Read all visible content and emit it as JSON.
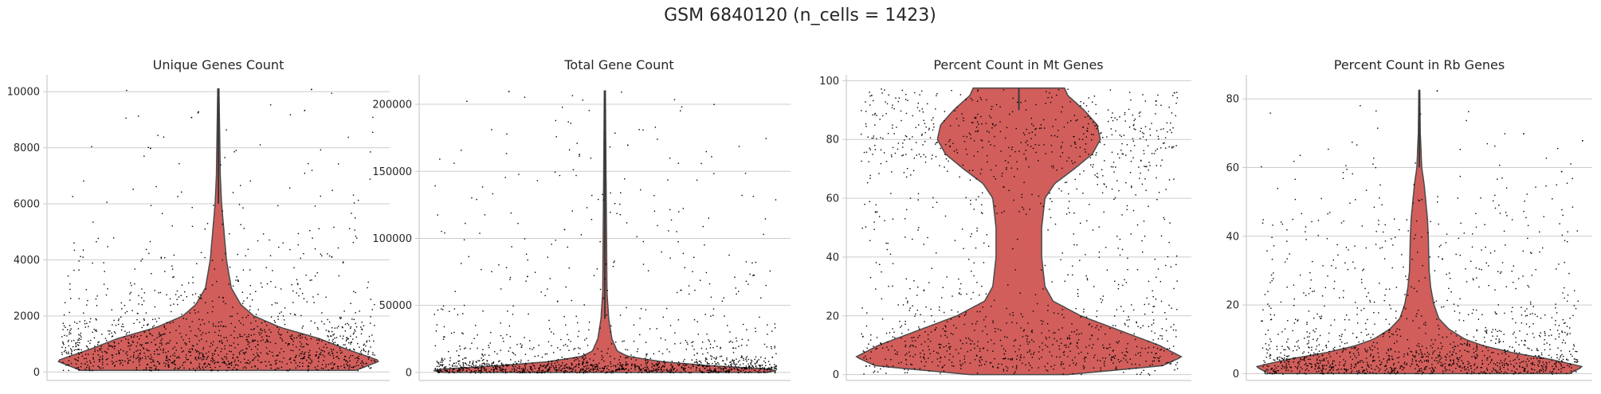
{
  "suptitle": "GSM 6840120 (n_cells = 1423)",
  "style": {
    "violin_fill": "#d15e5b",
    "violin_edge": "#4a4a4a",
    "point_color": "#000000",
    "grid_color": "#cccccc"
  },
  "chart_data": [
    {
      "type": "violin",
      "title": "Unique Genes Count",
      "ylim": [
        -300,
        10600
      ],
      "yticks": [
        0,
        2000,
        4000,
        6000,
        8000,
        10000
      ],
      "ytick_labels": [
        "0",
        "2000",
        "4000",
        "6000",
        "8000",
        "10000"
      ],
      "n_points": 1423,
      "max": 10100,
      "violin_profile": [
        [
          60,
          0.85
        ],
        [
          400,
          1.0
        ],
        [
          800,
          0.8
        ],
        [
          1200,
          0.62
        ],
        [
          1600,
          0.38
        ],
        [
          2000,
          0.22
        ],
        [
          2400,
          0.14
        ],
        [
          3000,
          0.08
        ],
        [
          4000,
          0.05
        ],
        [
          5000,
          0.035
        ],
        [
          6000,
          0.02
        ],
        [
          7000,
          0.012
        ],
        [
          10100,
          0.004
        ]
      ],
      "outliers": [
        [
          0.44,
          9300
        ],
        [
          0.42,
          9100
        ],
        [
          0.75,
          9350
        ],
        [
          0.77,
          10100
        ],
        [
          0.3,
          8000
        ]
      ]
    },
    {
      "type": "violin",
      "title": "Total Gene Count",
      "ylim": [
        -6000,
        222000
      ],
      "yticks": [
        0,
        50000,
        100000,
        150000,
        200000
      ],
      "ytick_labels": [
        "0",
        "50000",
        "100000",
        "150000",
        "200000"
      ],
      "n_points": 1423,
      "max": 210000,
      "violin_profile": [
        [
          0,
          0.92
        ],
        [
          2000,
          1.0
        ],
        [
          5000,
          0.6
        ],
        [
          8000,
          0.32
        ],
        [
          12000,
          0.13
        ],
        [
          16000,
          0.07
        ],
        [
          25000,
          0.04
        ],
        [
          40000,
          0.022
        ],
        [
          60000,
          0.012
        ],
        [
          210000,
          0.003
        ]
      ],
      "outliers": [
        [
          0.24,
          210000
        ],
        [
          0.43,
          163000
        ],
        [
          0.56,
          170000
        ],
        [
          0.39,
          107000
        ],
        [
          0.29,
          72000
        ],
        [
          0.9,
          73000
        ]
      ]
    },
    {
      "type": "violin",
      "title": "Percent Count in Mt Genes",
      "ylim": [
        -2,
        102
      ],
      "yticks": [
        0,
        20,
        40,
        60,
        80,
        100
      ],
      "ytick_labels": [
        "0",
        "20",
        "40",
        "60",
        "80",
        "100"
      ],
      "n_points": 1423,
      "max": 97.5,
      "violin_profile": [
        [
          0,
          0.3
        ],
        [
          3,
          0.88
        ],
        [
          6,
          1.0
        ],
        [
          10,
          0.86
        ],
        [
          15,
          0.62
        ],
        [
          20,
          0.38
        ],
        [
          25,
          0.21
        ],
        [
          30,
          0.16
        ],
        [
          40,
          0.14
        ],
        [
          50,
          0.14
        ],
        [
          60,
          0.16
        ],
        [
          65,
          0.22
        ],
        [
          70,
          0.34
        ],
        [
          75,
          0.45
        ],
        [
          80,
          0.5
        ],
        [
          85,
          0.48
        ],
        [
          90,
          0.4
        ],
        [
          95,
          0.3
        ],
        [
          97.5,
          0.28
        ]
      ],
      "outliers": []
    },
    {
      "type": "violin",
      "title": "Percent Count in Rb Genes",
      "ylim": [
        -2,
        87
      ],
      "yticks": [
        0,
        20,
        40,
        60,
        80
      ],
      "ytick_labels": [
        "0",
        "20",
        "40",
        "60",
        "80"
      ],
      "n_points": 1423,
      "max": 82.5,
      "violin_profile": [
        [
          0,
          0.92
        ],
        [
          2,
          1.0
        ],
        [
          4,
          0.82
        ],
        [
          6,
          0.58
        ],
        [
          8,
          0.4
        ],
        [
          10,
          0.28
        ],
        [
          13,
          0.18
        ],
        [
          16,
          0.12
        ],
        [
          20,
          0.09
        ],
        [
          25,
          0.07
        ],
        [
          30,
          0.06
        ],
        [
          40,
          0.055
        ],
        [
          45,
          0.05
        ],
        [
          50,
          0.04
        ],
        [
          55,
          0.03
        ],
        [
          60,
          0.015
        ],
        [
          70,
          0.006
        ],
        [
          82.5,
          0.003
        ]
      ],
      "outliers": [
        [
          0.55,
          82.5
        ],
        [
          0.8,
          70
        ],
        [
          0.97,
          68
        ],
        [
          0.91,
          59
        ]
      ]
    }
  ]
}
